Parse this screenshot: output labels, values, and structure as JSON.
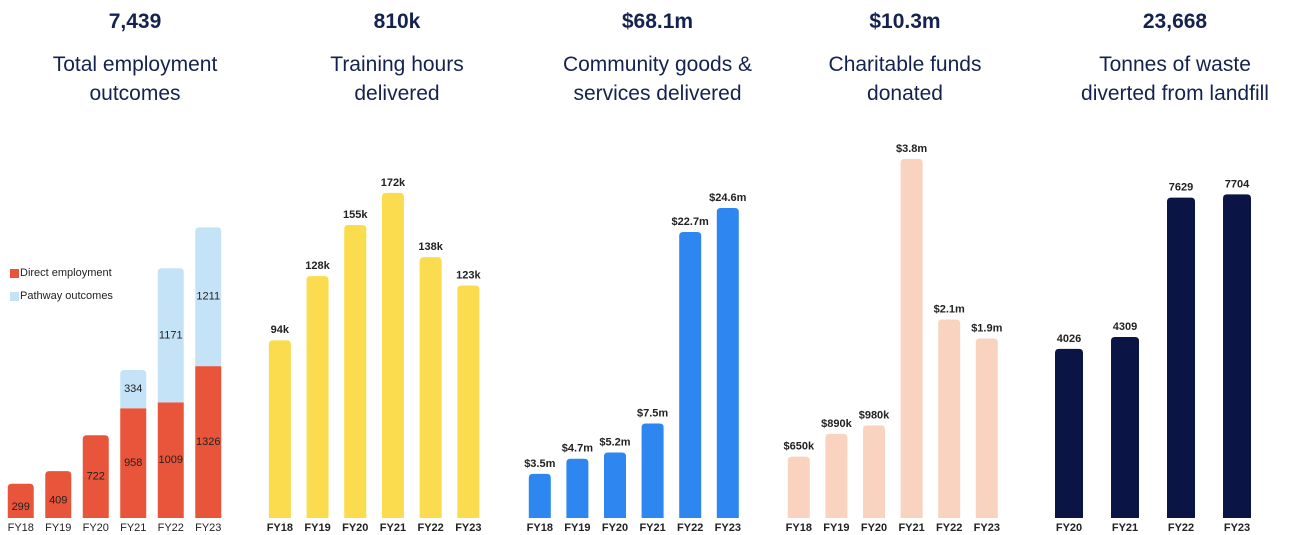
{
  "chart_data": [
    {
      "type": "bar",
      "stacked": true,
      "headline": "7,439",
      "title": "Total employment outcomes",
      "categories": [
        "FY18",
        "FY19",
        "FY20",
        "FY21",
        "FY22",
        "FY23"
      ],
      "series": [
        {
          "name": "Direct employment",
          "color": "#e8553a",
          "values": [
            299,
            409,
            722,
            958,
            1009,
            1326
          ]
        },
        {
          "name": "Pathway outcomes",
          "color": "#c5e3f7",
          "values": [
            null,
            null,
            null,
            334,
            1171,
            1211
          ]
        }
      ],
      "ylim": [
        0,
        3300
      ],
      "legend": "left"
    },
    {
      "type": "bar",
      "headline": "810k",
      "title": "Training hours delivered",
      "categories": [
        "FY18",
        "FY19",
        "FY20",
        "FY21",
        "FY22",
        "FY23"
      ],
      "values": [
        94000,
        128000,
        155000,
        172000,
        138000,
        123000
      ],
      "value_labels": [
        "94k",
        "128k",
        "155k",
        "172k",
        "138k",
        "123k"
      ],
      "color": "#fbdc4e",
      "ylim": [
        0,
        200000
      ]
    },
    {
      "type": "bar",
      "headline": "$68.1m",
      "title": "Community goods & services delivered",
      "categories": [
        "FY18",
        "FY19",
        "FY20",
        "FY21",
        "FY22",
        "FY23"
      ],
      "values": [
        3500000,
        4700000,
        5200000,
        7500000,
        22700000,
        24600000
      ],
      "value_labels": [
        "$3.5m",
        "$4.7m",
        "$5.2m",
        "$7.5m",
        "$22.7m",
        "$24.6m"
      ],
      "color": "#2e86f0",
      "ylim": [
        0,
        30000000
      ]
    },
    {
      "type": "bar",
      "headline": "$10.3m",
      "title": "Charitable funds donated",
      "categories": [
        "FY18",
        "FY19",
        "FY20",
        "FY21",
        "FY22",
        "FY23"
      ],
      "values": [
        650000,
        890000,
        980000,
        3800000,
        2100000,
        1900000
      ],
      "value_labels": [
        "$650k",
        "$890k",
        "$980k",
        "$3.8m",
        "$2.1m",
        "$1.9m"
      ],
      "color": "#f9d3c0",
      "ylim": [
        0,
        4000000
      ]
    },
    {
      "type": "bar",
      "headline": "23,668",
      "title": "Tonnes of waste diverted from landfill",
      "categories": [
        "FY20",
        "FY21",
        "FY22",
        "FY23"
      ],
      "values": [
        4026,
        4309,
        7629,
        7704
      ],
      "color": "#0b1545",
      "ylim": [
        0,
        9000
      ]
    }
  ]
}
